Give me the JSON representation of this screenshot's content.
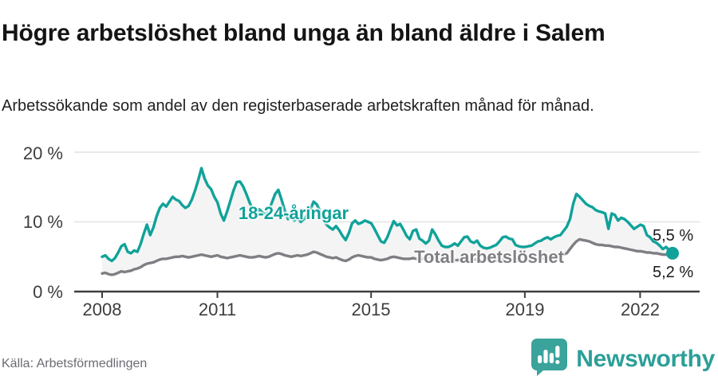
{
  "header": {
    "title": "Högre arbetslöshet bland unga än bland äldre i Salem",
    "subtitle": "Arbetssökande som andel av den registerbaserade arbetskraften månad för månad."
  },
  "footer": {
    "source": "Källa: Arbetsförmedlingen",
    "logo_text": "Newsworthy",
    "logo_icon": "speech-bubble-bar-chart-icon"
  },
  "colors": {
    "youth_line": "#10a29a",
    "total_line": "#7e7e83",
    "band_fill": "#f4f4f4",
    "gridline": "#e2e2e2",
    "axis": "#3f3f3f",
    "logo_teal": "#3aa39b"
  },
  "chart_data": {
    "type": "line",
    "title": "Högre arbetslöshet bland unga än bland äldre i Salem",
    "subtitle": "Arbetssökande som andel av den registerbaserade arbetskraften månad för månad.",
    "x_unit": "month",
    "x_start": "2008-01",
    "x_end": "2022-11",
    "ylim": [
      0,
      20
    ],
    "grid": "horizontal",
    "legend_position": "inline-labels",
    "x_tick_labels": [
      "2008",
      "2011",
      "2015",
      "2019",
      "2022"
    ],
    "x_tick_years": [
      2008,
      2011,
      2015,
      2019,
      2022
    ],
    "y_tick_labels": [
      "0 %",
      "10 %",
      "20 %"
    ],
    "y_tick_values": [
      0,
      10,
      20
    ],
    "series": [
      {
        "name": "18-24-åringar",
        "color": "#10a29a",
        "end_label": "5,5 %",
        "end_value": 5.5,
        "values": [
          5.0,
          5.2,
          4.7,
          4.4,
          4.8,
          5.6,
          6.5,
          6.8,
          5.7,
          5.5,
          5.9,
          5.7,
          6.8,
          8.3,
          9.6,
          8.1,
          9.2,
          10.8,
          12.0,
          12.6,
          12.2,
          12.9,
          13.6,
          13.2,
          13.0,
          12.4,
          12.0,
          12.3,
          13.2,
          14.5,
          16.0,
          17.7,
          16.2,
          15.2,
          14.7,
          13.6,
          12.8,
          11.2,
          10.2,
          11.5,
          13.0,
          14.5,
          15.7,
          15.8,
          15.1,
          14.0,
          12.8,
          11.8,
          11.3,
          11.8,
          11.4,
          11.0,
          11.6,
          12.8,
          14.0,
          14.6,
          13.2,
          11.6,
          10.4,
          10.8,
          10.2,
          10.6,
          10.0,
          10.4,
          11.0,
          11.8,
          12.9,
          12.5,
          11.6,
          10.4,
          9.6,
          9.2,
          8.9,
          9.4,
          8.8,
          8.0,
          7.4,
          8.4,
          9.8,
          10.2,
          9.7,
          9.9,
          10.2,
          10.0,
          9.8,
          9.0,
          8.1,
          7.2,
          7.0,
          7.8,
          9.0,
          10.1,
          9.5,
          9.7,
          8.9,
          8.0,
          7.5,
          8.7,
          8.9,
          7.6,
          7.3,
          6.9,
          7.3,
          8.9,
          8.2,
          7.3,
          6.6,
          6.4,
          6.4,
          6.6,
          6.9,
          6.6,
          7.2,
          7.8,
          7.9,
          7.2,
          7.0,
          7.3,
          6.6,
          6.3,
          6.2,
          6.3,
          6.5,
          6.7,
          7.2,
          7.8,
          7.9,
          7.6,
          7.5,
          6.7,
          6.5,
          6.4,
          6.4,
          6.5,
          6.6,
          6.9,
          7.2,
          7.3,
          7.6,
          7.8,
          7.5,
          7.8,
          8.0,
          8.1,
          8.7,
          9.3,
          10.4,
          12.6,
          14.0,
          13.6,
          13.1,
          12.6,
          12.3,
          12.1,
          11.7,
          11.5,
          11.4,
          11.2,
          9.0,
          11.2,
          11.0,
          10.2,
          10.6,
          10.4,
          10.0,
          9.5,
          9.0,
          9.3,
          9.6,
          9.4,
          8.1,
          7.8,
          7.2,
          7.0,
          6.6,
          6.1,
          6.4,
          5.9,
          5.5
        ]
      },
      {
        "name": "Total arbetslöshet",
        "color": "#7e7e83",
        "end_label": "5,2 %",
        "end_value": 5.2,
        "values": [
          2.6,
          2.7,
          2.5,
          2.4,
          2.5,
          2.7,
          2.9,
          2.8,
          2.9,
          3.0,
          3.2,
          3.3,
          3.5,
          3.8,
          4.0,
          4.1,
          4.2,
          4.4,
          4.6,
          4.7,
          4.7,
          4.8,
          4.9,
          5.0,
          5.0,
          5.1,
          5.0,
          4.9,
          5.0,
          5.1,
          5.2,
          5.3,
          5.2,
          5.1,
          5.0,
          5.1,
          5.2,
          5.0,
          4.9,
          4.8,
          4.9,
          5.0,
          5.1,
          5.2,
          5.1,
          5.0,
          4.9,
          4.9,
          5.0,
          5.1,
          5.0,
          4.9,
          5.0,
          5.2,
          5.4,
          5.5,
          5.4,
          5.2,
          5.1,
          5.0,
          5.1,
          5.2,
          5.1,
          5.2,
          5.3,
          5.5,
          5.7,
          5.6,
          5.4,
          5.2,
          5.0,
          4.9,
          4.8,
          4.9,
          4.7,
          4.5,
          4.4,
          4.6,
          4.9,
          5.1,
          5.2,
          5.1,
          5.0,
          4.9,
          4.9,
          4.7,
          4.6,
          4.5,
          4.6,
          4.7,
          4.9,
          5.0,
          4.9,
          4.8,
          4.7,
          4.7,
          4.7,
          4.8,
          4.7,
          4.6,
          4.7,
          4.8,
          4.9,
          4.8,
          4.7,
          4.6,
          4.6,
          4.5,
          4.6,
          4.6,
          4.5,
          4.5,
          4.6,
          4.7,
          4.8,
          4.7,
          4.6,
          4.6,
          4.5,
          4.4,
          4.5,
          4.5,
          4.4,
          4.4,
          4.5,
          4.6,
          4.7,
          4.6,
          4.5,
          4.4,
          4.4,
          4.4,
          4.4,
          4.5,
          4.5,
          4.6,
          4.6,
          4.7,
          4.8,
          4.8,
          4.9,
          4.9,
          5.0,
          5.2,
          5.3,
          5.5,
          6.1,
          6.7,
          7.2,
          7.5,
          7.4,
          7.3,
          7.2,
          7.0,
          6.8,
          6.7,
          6.7,
          6.6,
          6.6,
          6.5,
          6.4,
          6.4,
          6.3,
          6.2,
          6.1,
          6.0,
          5.9,
          5.8,
          5.8,
          5.7,
          5.6,
          5.6,
          5.5,
          5.5,
          5.4,
          5.3,
          5.3,
          5.2,
          5.2
        ]
      }
    ]
  }
}
